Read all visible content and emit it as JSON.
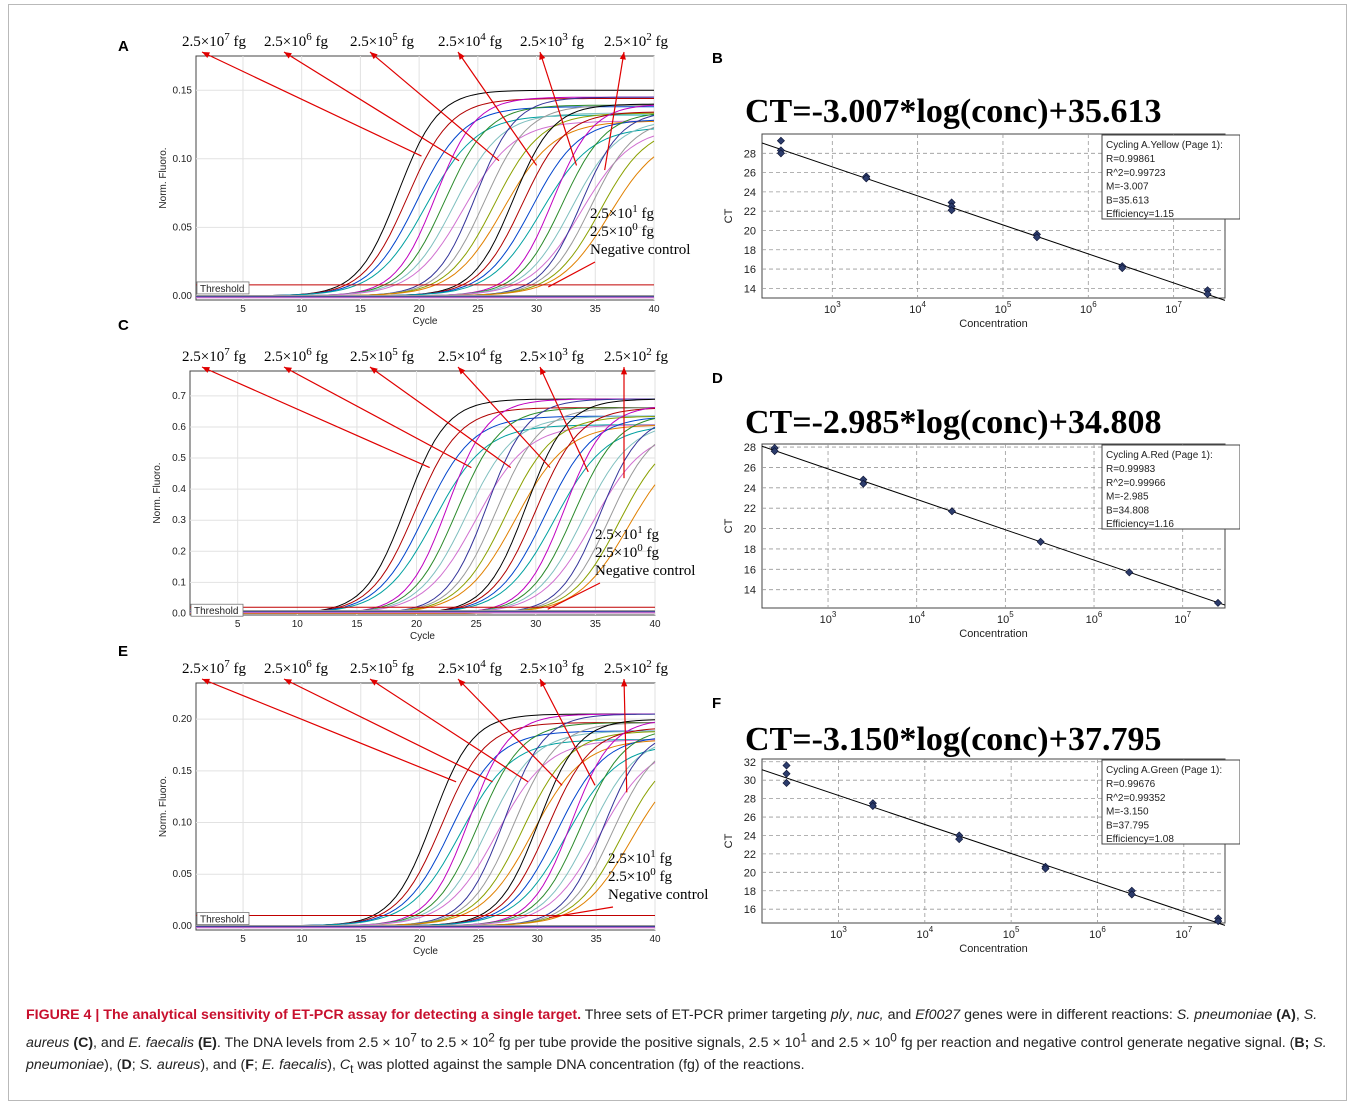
{
  "figure": {
    "panel_labels": [
      "A",
      "B",
      "C",
      "D",
      "E",
      "F"
    ],
    "caption": {
      "label": "FIGURE 4 | The analytical sensitivity of ET-PCR assay for detecting a single target.",
      "body_html": " Three sets of ET-PCR primer targeting <i>ply</i>, <i>nuc,</i> and <i>Ef0027</i> genes were in different reactions: <i>S. pneumoniae</i> <b>(A)</b>, <i>S. aureus</i> <b>(C)</b>, and <i>E. faecalis</i> <b>(E)</b>. The DNA levels from 2.5 × 10<sup>7</sup> to 2.5 × 10<sup>2</sup> fg per tube provide the positive signals, 2.5 × 10<sup>1</sup> and 2.5 × 10<sup>0</sup> fg per reaction and negative control generate negative signal. (<b>B;</b> <i>S. pneumoniae</i>), (<b>D</b>; <i>S. aureus</i>), and (<b>F</b>; <i>E. faecalis</i>), <i>C</i><sub>t</sub> was plotted against the sample DNA concentration (fg) of the reactions."
    }
  },
  "chart_data": [
    {
      "panel": "A",
      "type": "line",
      "xlabel": "Cycle",
      "ylabel": "Norm. Fluoro.",
      "xlim": [
        1,
        40
      ],
      "ylim": [
        -0.003,
        0.175
      ],
      "xticks": [
        5,
        10,
        15,
        20,
        25,
        30,
        35,
        40
      ],
      "yticks": [
        0.0,
        0.05,
        0.1,
        0.15
      ],
      "threshold_label": "Threshold",
      "threshold": 0.008,
      "top_labels": [
        "2.5×10",
        "2.5×10",
        "2.5×10",
        "2.5×10",
        "2.5×10",
        "2.5×10"
      ],
      "top_exponents": [
        "7",
        "6",
        "5",
        "4",
        "3",
        "2"
      ],
      "unit": "fg",
      "series": [
        {
          "label_idx": 0,
          "midpoint": 19.6,
          "plateau": 0.15
        },
        {
          "label_idx": 1,
          "midpoint": 22.8,
          "plateau": 0.145
        },
        {
          "label_idx": 2,
          "midpoint": 26.2,
          "plateau": 0.145
        },
        {
          "label_idx": 3,
          "midpoint": 29.4,
          "plateau": 0.14
        },
        {
          "label_idx": 4,
          "midpoint": 32.8,
          "plateau": 0.14
        },
        {
          "label_idx": 5,
          "midpoint": 35.2,
          "plateau": 0.135
        }
      ],
      "neg_labels": [
        "2.5×10",
        "2.5×10",
        "Negative control"
      ],
      "neg_exponents": [
        "1",
        "0"
      ]
    },
    {
      "panel": "C",
      "type": "line",
      "xlabel": "Cycle",
      "ylabel": "Norm. Fluoro.",
      "xlim": [
        1,
        40
      ],
      "ylim": [
        -0.005,
        0.78
      ],
      "xticks": [
        5,
        10,
        15,
        20,
        25,
        30,
        35,
        40
      ],
      "yticks": [
        0.0,
        0.1,
        0.2,
        0.3,
        0.4,
        0.5,
        0.6,
        0.7
      ],
      "threshold_label": "Threshold",
      "threshold": 0.02,
      "top_labels": [
        "2.5×10",
        "2.5×10",
        "2.5×10",
        "2.5×10",
        "2.5×10",
        "2.5×10"
      ],
      "top_exponents": [
        "7",
        "6",
        "5",
        "4",
        "3",
        "2"
      ],
      "unit": "fg",
      "series": [
        {
          "label_idx": 0,
          "midpoint": 20.5,
          "plateau": 0.69
        },
        {
          "label_idx": 1,
          "midpoint": 24.0,
          "plateau": 0.69
        },
        {
          "label_idx": 2,
          "midpoint": 27.3,
          "plateau": 0.69
        },
        {
          "label_idx": 3,
          "midpoint": 30.6,
          "plateau": 0.69
        },
        {
          "label_idx": 4,
          "midpoint": 33.8,
          "plateau": 0.67
        },
        {
          "label_idx": 5,
          "midpoint": 36.8,
          "plateau": 0.64
        }
      ],
      "neg_labels": [
        "2.5×10",
        "2.5×10",
        "Negative control"
      ],
      "neg_exponents": [
        "1",
        "0"
      ]
    },
    {
      "panel": "E",
      "type": "line",
      "xlabel": "Cycle",
      "ylabel": "Norm. Fluoro.",
      "xlim": [
        1,
        40
      ],
      "ylim": [
        -0.004,
        0.235
      ],
      "xticks": [
        5,
        10,
        15,
        20,
        25,
        30,
        35,
        40
      ],
      "yticks": [
        0.0,
        0.05,
        0.1,
        0.15,
        0.2
      ],
      "threshold_label": "Threshold",
      "threshold": 0.01,
      "top_labels": [
        "2.5×10",
        "2.5×10",
        "2.5×10",
        "2.5×10",
        "2.5×10",
        "2.5×10"
      ],
      "top_exponents": [
        "7",
        "6",
        "5",
        "4",
        "3",
        "2"
      ],
      "unit": "fg",
      "series": [
        {
          "label_idx": 0,
          "midpoint": 22.5,
          "plateau": 0.205
        },
        {
          "label_idx": 1,
          "midpoint": 25.6,
          "plateau": 0.205
        },
        {
          "label_idx": 2,
          "midpoint": 28.6,
          "plateau": 0.205
        },
        {
          "label_idx": 3,
          "midpoint": 31.5,
          "plateau": 0.2
        },
        {
          "label_idx": 4,
          "midpoint": 34.3,
          "plateau": 0.2
        },
        {
          "label_idx": 5,
          "midpoint": 37.0,
          "plateau": 0.19
        }
      ],
      "neg_labels": [
        "2.5×10",
        "2.5×10",
        "Negative control"
      ],
      "neg_exponents": [
        "1",
        "0"
      ]
    },
    {
      "panel": "B",
      "type": "scatter",
      "equation": "CT=-3.007*log(conc)+35.613",
      "xlabel": "Concentration",
      "ylabel": "CT",
      "xscale": "log",
      "xlim": [
        150,
        40000000
      ],
      "ylim": [
        13,
        30
      ],
      "yticks": [
        14,
        16,
        18,
        20,
        22,
        24,
        26,
        28
      ],
      "xticks": [
        1000,
        10000,
        100000,
        1000000,
        10000000
      ],
      "xtick_base": "10",
      "xtick_exps": [
        "3",
        "4",
        "5",
        "6",
        "7"
      ],
      "fit": {
        "m": -3.007,
        "b": 35.613
      },
      "points": [
        {
          "x": 250,
          "y": 29.3
        },
        {
          "x": 250,
          "y": 28.3
        },
        {
          "x": 250,
          "y": 28.0
        },
        {
          "x": 2500,
          "y": 25.6
        },
        {
          "x": 2500,
          "y": 25.4
        },
        {
          "x": 25000,
          "y": 22.9
        },
        {
          "x": 25000,
          "y": 22.5
        },
        {
          "x": 25000,
          "y": 22.1
        },
        {
          "x": 250000,
          "y": 19.6
        },
        {
          "x": 250000,
          "y": 19.3
        },
        {
          "x": 2500000,
          "y": 16.3
        },
        {
          "x": 2500000,
          "y": 16.1
        },
        {
          "x": 25000000,
          "y": 13.8
        },
        {
          "x": 25000000,
          "y": 13.4
        }
      ],
      "legend": {
        "title": "Cycling A.Yellow (Page 1):",
        "lines": [
          "R=0.99861",
          "R^2=0.99723",
          "M=-3.007",
          "B=35.613",
          "Efficiency=1.15"
        ]
      }
    },
    {
      "panel": "D",
      "type": "scatter",
      "equation": "CT=-2.985*log(conc)+34.808",
      "xlabel": "Concentration",
      "ylabel": "CT",
      "xscale": "log",
      "xlim": [
        180,
        30000000
      ],
      "ylim": [
        12.2,
        28.3
      ],
      "yticks": [
        14,
        16,
        18,
        20,
        22,
        24,
        26,
        28
      ],
      "xticks": [
        1000,
        10000,
        100000,
        1000000,
        10000000
      ],
      "xtick_base": "10",
      "xtick_exps": [
        "3",
        "4",
        "5",
        "6",
        "7"
      ],
      "fit": {
        "m": -2.985,
        "b": 34.808
      },
      "points": [
        {
          "x": 250,
          "y": 27.9
        },
        {
          "x": 250,
          "y": 27.6
        },
        {
          "x": 2500,
          "y": 24.8
        },
        {
          "x": 2500,
          "y": 24.4
        },
        {
          "x": 25000,
          "y": 21.7
        },
        {
          "x": 250000,
          "y": 18.7
        },
        {
          "x": 2500000,
          "y": 15.7
        },
        {
          "x": 25000000,
          "y": 12.7
        }
      ],
      "legend": {
        "title": "Cycling A.Red (Page 1):",
        "lines": [
          "R=0.99983",
          "R^2=0.99966",
          "M=-2.985",
          "B=34.808",
          "Efficiency=1.16"
        ]
      }
    },
    {
      "panel": "F",
      "type": "scatter",
      "equation": "CT=-3.150*log(conc)+37.795",
      "xlabel": "Concentration",
      "ylabel": "CT",
      "xscale": "log",
      "xlim": [
        130,
        30000000
      ],
      "ylim": [
        14.5,
        32.3
      ],
      "yticks": [
        16,
        18,
        20,
        22,
        24,
        26,
        28,
        30,
        32
      ],
      "xticks": [
        1000,
        10000,
        100000,
        1000000,
        10000000
      ],
      "xtick_base": "10",
      "xtick_exps": [
        "3",
        "4",
        "5",
        "6",
        "7"
      ],
      "fit": {
        "m": -3.15,
        "b": 37.795
      },
      "points": [
        {
          "x": 250,
          "y": 31.6
        },
        {
          "x": 250,
          "y": 30.7
        },
        {
          "x": 250,
          "y": 29.7
        },
        {
          "x": 2500,
          "y": 27.5
        },
        {
          "x": 2500,
          "y": 27.2
        },
        {
          "x": 25000,
          "y": 24.0
        },
        {
          "x": 25000,
          "y": 23.6
        },
        {
          "x": 250000,
          "y": 20.6
        },
        {
          "x": 250000,
          "y": 20.4
        },
        {
          "x": 2500000,
          "y": 18.0
        },
        {
          "x": 2500000,
          "y": 17.6
        },
        {
          "x": 25000000,
          "y": 15.0
        },
        {
          "x": 25000000,
          "y": 14.7
        }
      ],
      "legend": {
        "title": "Cycling A.Green (Page 1):",
        "lines": [
          "R=0.99676",
          "R^2=0.99352",
          "M=-3.150",
          "B=37.795",
          "Efficiency=1.08"
        ]
      }
    }
  ]
}
